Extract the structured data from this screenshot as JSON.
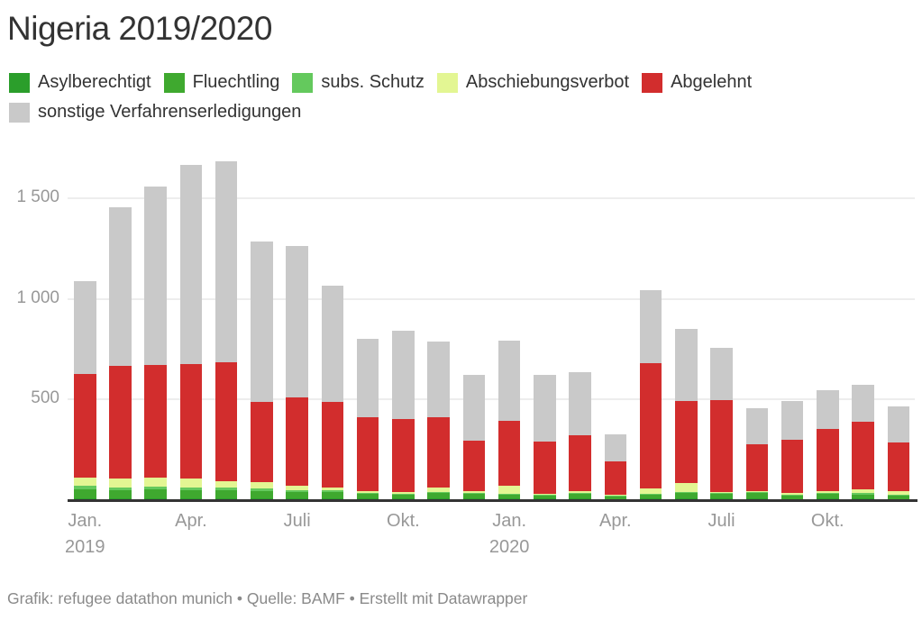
{
  "title": "Nigeria 2019/2020",
  "footer": "Grafik: refugee datathon munich • Quelle: BAMF • Erstellt mit Datawrapper",
  "colors": {
    "background": "#ffffff",
    "title_text": "#333333",
    "legend_text": "#333333",
    "axis_text": "#989898",
    "grid": "#ededed",
    "baseline": "#333333",
    "footer_text": "#8a8a8a"
  },
  "chart_data": {
    "type": "bar",
    "stacked": true,
    "grid": "horizontal",
    "legend_position": "top",
    "title": "Nigeria 2019/2020",
    "xlabel": "",
    "ylabel": "",
    "ylim": [
      0,
      1780
    ],
    "categories": [
      "Jan. 2019",
      "Feb. 2019",
      "Mär. 2019",
      "Apr. 2019",
      "Mai 2019",
      "Jun. 2019",
      "Jul. 2019",
      "Aug. 2019",
      "Sep. 2019",
      "Okt. 2019",
      "Nov. 2019",
      "Dez. 2019",
      "Jan. 2020",
      "Feb. 2020",
      "Mär. 2020",
      "Apr. 2020",
      "Mai 2020",
      "Jun. 2020",
      "Jul. 2020",
      "Aug. 2020",
      "Sep. 2020",
      "Okt. 2020",
      "Nov. 2020",
      "Dez. 2020"
    ],
    "series": [
      {
        "name": "Asylberechtigt",
        "color": "#2b9e2b",
        "values": [
          5,
          5,
          5,
          5,
          5,
          4,
          4,
          4,
          3,
          3,
          3,
          3,
          3,
          2,
          2,
          2,
          2,
          2,
          2,
          2,
          2,
          2,
          2,
          2
        ]
      },
      {
        "name": "Fluechtling",
        "color": "#3fa92f",
        "values": [
          46,
          40,
          45,
          40,
          38,
          37,
          33,
          32,
          23,
          18,
          27,
          22,
          18,
          15,
          26,
          13,
          20,
          28,
          23,
          28,
          15,
          23,
          20,
          14
        ]
      },
      {
        "name": "subs. Schutz",
        "color": "#64c95d",
        "values": [
          15,
          15,
          15,
          15,
          13,
          12,
          10,
          8,
          6,
          5,
          6,
          5,
          5,
          4,
          5,
          3,
          6,
          6,
          5,
          6,
          4,
          5,
          10,
          8
        ]
      },
      {
        "name": "Abschiebungsverbot",
        "color": "#e3f693",
        "values": [
          42,
          45,
          41,
          41,
          35,
          30,
          21,
          15,
          9,
          11,
          21,
          9,
          41,
          6,
          6,
          5,
          27,
          45,
          6,
          6,
          9,
          9,
          18,
          18
        ]
      },
      {
        "name": "Abgelehnt",
        "color": "#d22d2d",
        "values": [
          519,
          561,
          563,
          575,
          594,
          402,
          440,
          426,
          370,
          363,
          351,
          252,
          326,
          261,
          279,
          164,
          626,
          409,
          459,
          231,
          266,
          312,
          338,
          242
        ]
      },
      {
        "name": "sonstige Verfahrenserledigungen",
        "color": "#c9c9c9",
        "values": [
          463,
          789,
          891,
          992,
          1002,
          801,
          755,
          581,
          388,
          439,
          377,
          330,
          397,
          333,
          315,
          135,
          364,
          359,
          261,
          183,
          196,
          192,
          182,
          181
        ]
      }
    ],
    "y_axis": {
      "ticks": [
        {
          "value": 500,
          "label": "500"
        },
        {
          "value": 1000,
          "label": "1 000"
        },
        {
          "value": 1500,
          "label": "1 500"
        }
      ]
    },
    "x_axis": {
      "ticks": [
        {
          "bar_index": 0,
          "lines": [
            "Jan.",
            "2019"
          ]
        },
        {
          "bar_index": 3,
          "lines": [
            "Apr."
          ]
        },
        {
          "bar_index": 6,
          "lines": [
            "Juli"
          ]
        },
        {
          "bar_index": 9,
          "lines": [
            "Okt."
          ]
        },
        {
          "bar_index": 12,
          "lines": [
            "Jan.",
            "2020"
          ]
        },
        {
          "bar_index": 15,
          "lines": [
            "Apr."
          ]
        },
        {
          "bar_index": 18,
          "lines": [
            "Juli"
          ]
        },
        {
          "bar_index": 21,
          "lines": [
            "Okt."
          ]
        }
      ]
    }
  }
}
